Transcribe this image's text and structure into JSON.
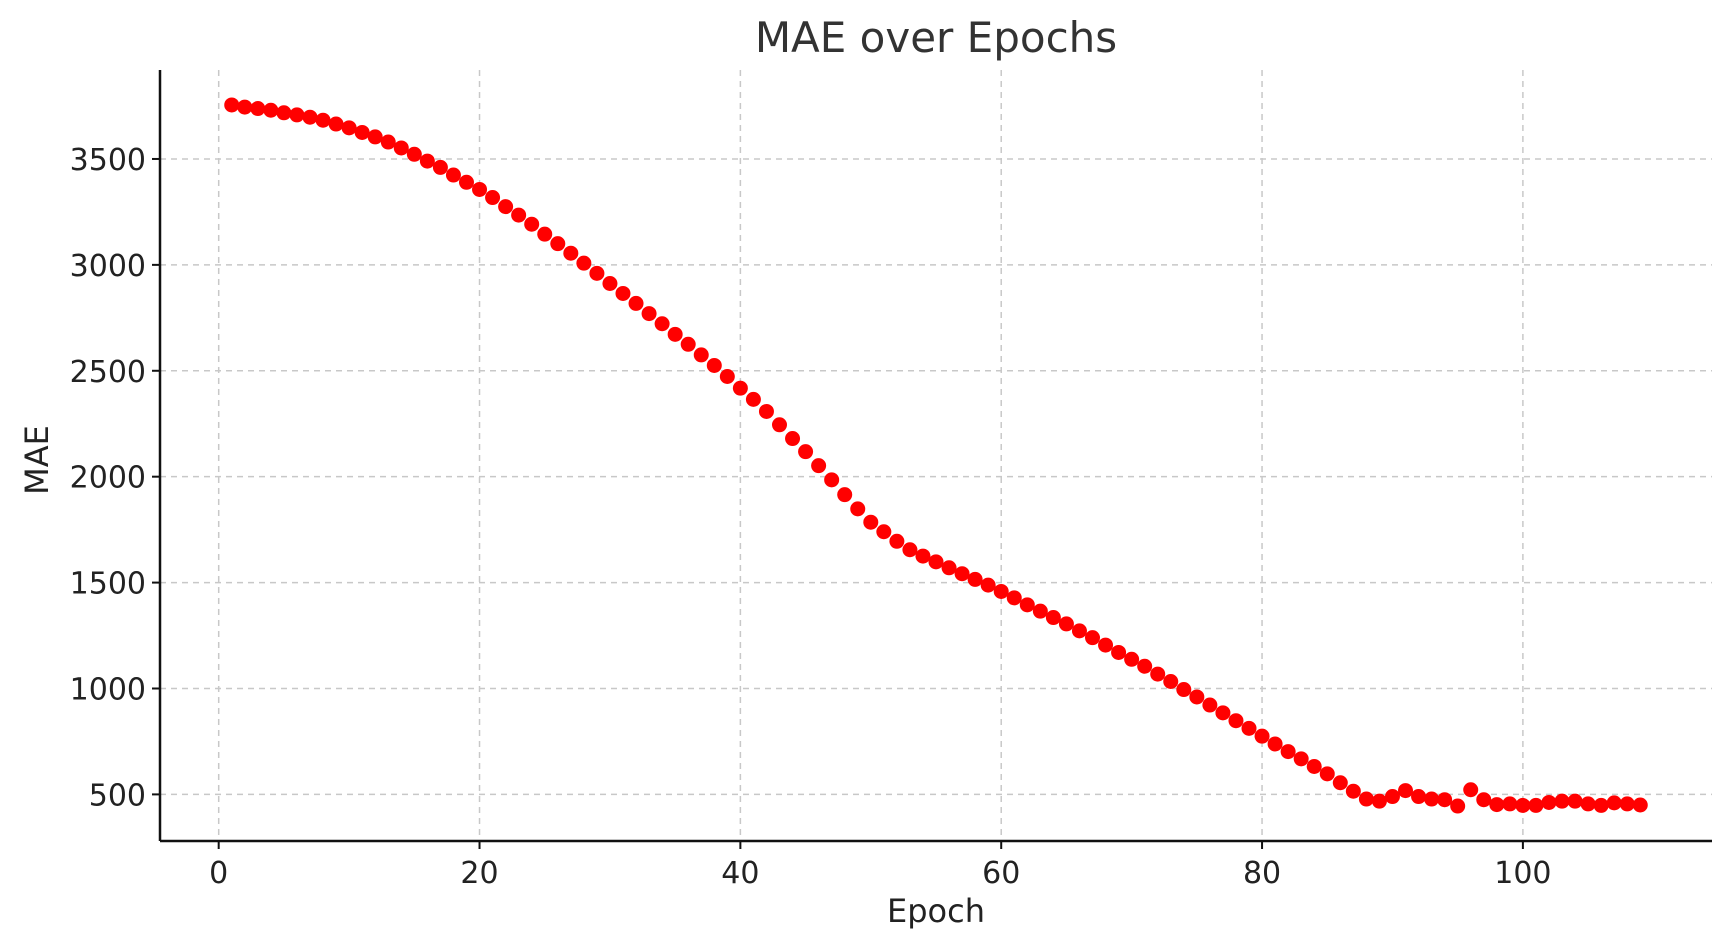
{
  "chart_data": {
    "type": "scatter",
    "title": "MAE over Epochs",
    "xlabel": "Epoch",
    "ylabel": "MAE",
    "xlim": [
      -4.5,
      114.5
    ],
    "ylim": [
      280,
      3920
    ],
    "xticks": [
      0,
      20,
      40,
      60,
      80,
      100
    ],
    "yticks": [
      500,
      1000,
      1500,
      2000,
      2500,
      3000,
      3500
    ],
    "grid": true,
    "color": "#ff0000",
    "series": [
      {
        "x": [
          1,
          2,
          3,
          4,
          5,
          6,
          7,
          8,
          9,
          10,
          11,
          12,
          13,
          14,
          15,
          16,
          17,
          18,
          19,
          20,
          21,
          22,
          23,
          24,
          25,
          26,
          27,
          28,
          29,
          30,
          31,
          32,
          33,
          34,
          35,
          36,
          37,
          38,
          39,
          40,
          41,
          42,
          43,
          44,
          45,
          46,
          47,
          48,
          49,
          50,
          51,
          52,
          53,
          54,
          55,
          56,
          57,
          58,
          59,
          60,
          61,
          62,
          63,
          64,
          65,
          66,
          67,
          68,
          69,
          70,
          71,
          72,
          73,
          74,
          75,
          76,
          77,
          78,
          79,
          80,
          81,
          82,
          83,
          84,
          85,
          86,
          87,
          88,
          89,
          90,
          91,
          92,
          93,
          94,
          95,
          96,
          97,
          98,
          99,
          100,
          101,
          102,
          103,
          104,
          105,
          106,
          107,
          108,
          109
        ],
        "values": [
          3755,
          3745,
          3738,
          3730,
          3718,
          3708,
          3697,
          3683,
          3665,
          3647,
          3625,
          3604,
          3580,
          3552,
          3522,
          3490,
          3460,
          3424,
          3390,
          3356,
          3318,
          3275,
          3235,
          3192,
          3145,
          3100,
          3055,
          3008,
          2960,
          2912,
          2865,
          2818,
          2770,
          2722,
          2672,
          2625,
          2575,
          2525,
          2473,
          2418,
          2365,
          2308,
          2245,
          2180,
          2118,
          2052,
          1985,
          1915,
          1848,
          1785,
          1740,
          1695,
          1655,
          1625,
          1598,
          1570,
          1542,
          1515,
          1488,
          1458,
          1428,
          1395,
          1365,
          1335,
          1305,
          1272,
          1240,
          1205,
          1170,
          1138,
          1105,
          1068,
          1033,
          995,
          960,
          922,
          885,
          848,
          812,
          775,
          738,
          702,
          668,
          632,
          597,
          555,
          515,
          478,
          468,
          490,
          518,
          490,
          478,
          475,
          445,
          522,
          475,
          452,
          455,
          448,
          448,
          462,
          468,
          468,
          455,
          448,
          460,
          455,
          450
        ]
      }
    ]
  }
}
